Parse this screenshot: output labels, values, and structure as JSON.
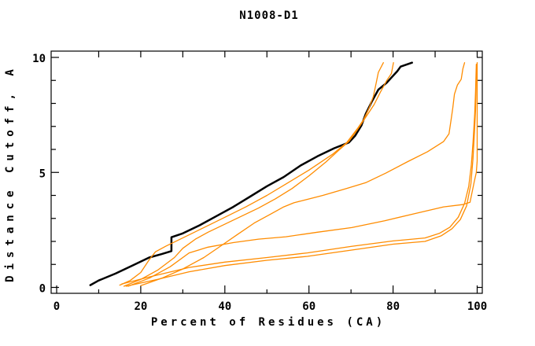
{
  "chart_data": {
    "type": "line",
    "title": "N1008-D1",
    "xlabel": "Percent of Residues (CA)",
    "ylabel": "Distance Cutoff, A",
    "xlim": [
      0,
      100
    ],
    "ylim": [
      0,
      10
    ],
    "grid": false,
    "legend": "none",
    "axes": {
      "x_major_ticks": [
        0,
        20,
        40,
        60,
        80,
        100
      ],
      "x_tick_labels": [
        "0",
        "20",
        "40",
        "60",
        "80",
        "100"
      ],
      "x_minor_ticks": [
        10,
        30,
        50,
        70,
        90
      ],
      "x_top_ticks": [
        10,
        20,
        30,
        40,
        50,
        60,
        70,
        80,
        90,
        100
      ],
      "y_major_ticks": [
        0,
        5,
        10
      ],
      "y_tick_labels": [
        "0",
        "5",
        "10"
      ],
      "y_minor_ticks": [
        1,
        2,
        3,
        4,
        6,
        7,
        8,
        9
      ]
    },
    "colors": {
      "reference": "#000000",
      "models": "#ff8c00",
      "frame": "#000000"
    },
    "series": [
      {
        "name": "black-reference-curve",
        "color": "#000000",
        "width": 2.5,
        "points": [
          [
            8,
            0.1
          ],
          [
            10,
            0.3
          ],
          [
            14,
            0.6
          ],
          [
            18,
            0.95
          ],
          [
            22,
            1.3
          ],
          [
            25,
            1.45
          ],
          [
            27.3,
            1.58
          ],
          [
            27.3,
            2.18
          ],
          [
            30,
            2.35
          ],
          [
            34,
            2.7
          ],
          [
            38,
            3.1
          ],
          [
            42,
            3.5
          ],
          [
            46,
            3.95
          ],
          [
            50,
            4.4
          ],
          [
            54,
            4.8
          ],
          [
            58,
            5.3
          ],
          [
            62,
            5.7
          ],
          [
            66,
            6.05
          ],
          [
            69.5,
            6.3
          ],
          [
            71,
            6.6
          ],
          [
            72.5,
            7.05
          ],
          [
            73.5,
            7.55
          ],
          [
            75,
            8.1
          ],
          [
            76.5,
            8.6
          ],
          [
            78.5,
            8.9
          ],
          [
            79.5,
            9.1
          ],
          [
            81,
            9.4
          ],
          [
            81.8,
            9.6
          ],
          [
            84.5,
            9.77
          ]
        ]
      },
      {
        "name": "orange-curve-1",
        "color": "#ff8c00",
        "width": 1.3,
        "points": [
          [
            15,
            0.1
          ],
          [
            17.5,
            0.3
          ],
          [
            20,
            0.65
          ],
          [
            22,
            1.2
          ],
          [
            23.5,
            1.55
          ],
          [
            26,
            1.8
          ],
          [
            30,
            2.15
          ],
          [
            35,
            2.6
          ],
          [
            40,
            3.05
          ],
          [
            45,
            3.5
          ],
          [
            50,
            4.0
          ],
          [
            55,
            4.55
          ],
          [
            60,
            5.1
          ],
          [
            65.7,
            5.8
          ],
          [
            69,
            6.3
          ],
          [
            71.5,
            6.9
          ],
          [
            73,
            7.3
          ],
          [
            74.3,
            7.8
          ],
          [
            75.3,
            8.3
          ],
          [
            76,
            8.9
          ],
          [
            76.5,
            9.35
          ],
          [
            77.7,
            9.77
          ]
        ]
      },
      {
        "name": "orange-curve-2",
        "color": "#ff8c00",
        "width": 1.3,
        "points": [
          [
            16,
            0.05
          ],
          [
            20,
            0.35
          ],
          [
            24,
            0.75
          ],
          [
            28,
            1.3
          ],
          [
            30,
            1.7
          ],
          [
            33,
            2.1
          ],
          [
            36,
            2.4
          ],
          [
            40,
            2.75
          ],
          [
            44,
            3.1
          ],
          [
            48,
            3.45
          ],
          [
            52,
            3.85
          ],
          [
            56,
            4.3
          ],
          [
            60,
            4.85
          ],
          [
            64,
            5.45
          ],
          [
            67,
            5.95
          ],
          [
            69.5,
            6.35
          ],
          [
            71.5,
            6.85
          ],
          [
            73.5,
            7.4
          ],
          [
            75.5,
            7.95
          ],
          [
            77,
            8.5
          ],
          [
            78.5,
            9.0
          ],
          [
            79.6,
            9.3
          ],
          [
            80.1,
            9.77
          ]
        ]
      },
      {
        "name": "orange-curve-3",
        "color": "#ff8c00",
        "width": 1.3,
        "points": [
          [
            20,
            0.08
          ],
          [
            25,
            0.4
          ],
          [
            30,
            0.8
          ],
          [
            35,
            1.3
          ],
          [
            39,
            1.8
          ],
          [
            43,
            2.3
          ],
          [
            47,
            2.8
          ],
          [
            51,
            3.2
          ],
          [
            54,
            3.5
          ],
          [
            56.4,
            3.68
          ],
          [
            63.3,
            4.0
          ],
          [
            68.9,
            4.3
          ],
          [
            73.6,
            4.56
          ],
          [
            78.3,
            4.97
          ],
          [
            83.5,
            5.47
          ],
          [
            88.2,
            5.9
          ],
          [
            92,
            6.34
          ],
          [
            93.3,
            6.68
          ],
          [
            93.8,
            7.3
          ],
          [
            94.2,
            7.8
          ],
          [
            94.6,
            8.4
          ],
          [
            95.3,
            8.8
          ],
          [
            96.2,
            9.05
          ],
          [
            96.6,
            9.5
          ],
          [
            97,
            9.77
          ]
        ]
      },
      {
        "name": "orange-curve-4",
        "color": "#ff8c00",
        "width": 1.3,
        "points": [
          [
            17,
            0.05
          ],
          [
            22,
            0.4
          ],
          [
            27,
            0.9
          ],
          [
            31.5,
            1.5
          ],
          [
            36,
            1.75
          ],
          [
            42,
            1.95
          ],
          [
            48,
            2.1
          ],
          [
            54.5,
            2.2
          ],
          [
            62,
            2.4
          ],
          [
            70.2,
            2.6
          ],
          [
            78,
            2.9
          ],
          [
            85,
            3.2
          ],
          [
            92,
            3.5
          ],
          [
            96.5,
            3.6
          ],
          [
            98.3,
            3.7
          ],
          [
            99.3,
            4.6
          ],
          [
            99.8,
            5.0
          ],
          [
            100,
            5.5
          ],
          [
            100,
            9.77
          ]
        ]
      },
      {
        "name": "orange-curve-5",
        "color": "#ff8c00",
        "width": 1.3,
        "points": [
          [
            15.5,
            0.15
          ],
          [
            22,
            0.45
          ],
          [
            31.5,
            0.87
          ],
          [
            40,
            1.1
          ],
          [
            50,
            1.3
          ],
          [
            59.6,
            1.5
          ],
          [
            70,
            1.78
          ],
          [
            80,
            2.02
          ],
          [
            87.6,
            2.15
          ],
          [
            91,
            2.35
          ],
          [
            93.5,
            2.62
          ],
          [
            95.5,
            3.05
          ],
          [
            97,
            3.65
          ],
          [
            98,
            4.4
          ],
          [
            98.6,
            5.3
          ],
          [
            99,
            6.3
          ],
          [
            99.4,
            7.5
          ],
          [
            99.6,
            8.5
          ],
          [
            99.8,
            9.7
          ]
        ]
      },
      {
        "name": "orange-curve-6",
        "color": "#ff8c00",
        "width": 1.3,
        "points": [
          [
            16.5,
            0.05
          ],
          [
            24,
            0.35
          ],
          [
            31.5,
            0.68
          ],
          [
            40,
            0.95
          ],
          [
            50,
            1.18
          ],
          [
            59.6,
            1.35
          ],
          [
            70,
            1.62
          ],
          [
            80,
            1.88
          ],
          [
            87.6,
            2.0
          ],
          [
            91.5,
            2.25
          ],
          [
            94,
            2.55
          ],
          [
            96,
            2.95
          ],
          [
            97.5,
            3.55
          ],
          [
            98.5,
            4.5
          ],
          [
            99,
            5.6
          ],
          [
            99.3,
            6.6
          ],
          [
            99.6,
            7.7
          ],
          [
            99.8,
            9.2
          ],
          [
            99.9,
            9.7
          ]
        ]
      }
    ]
  }
}
